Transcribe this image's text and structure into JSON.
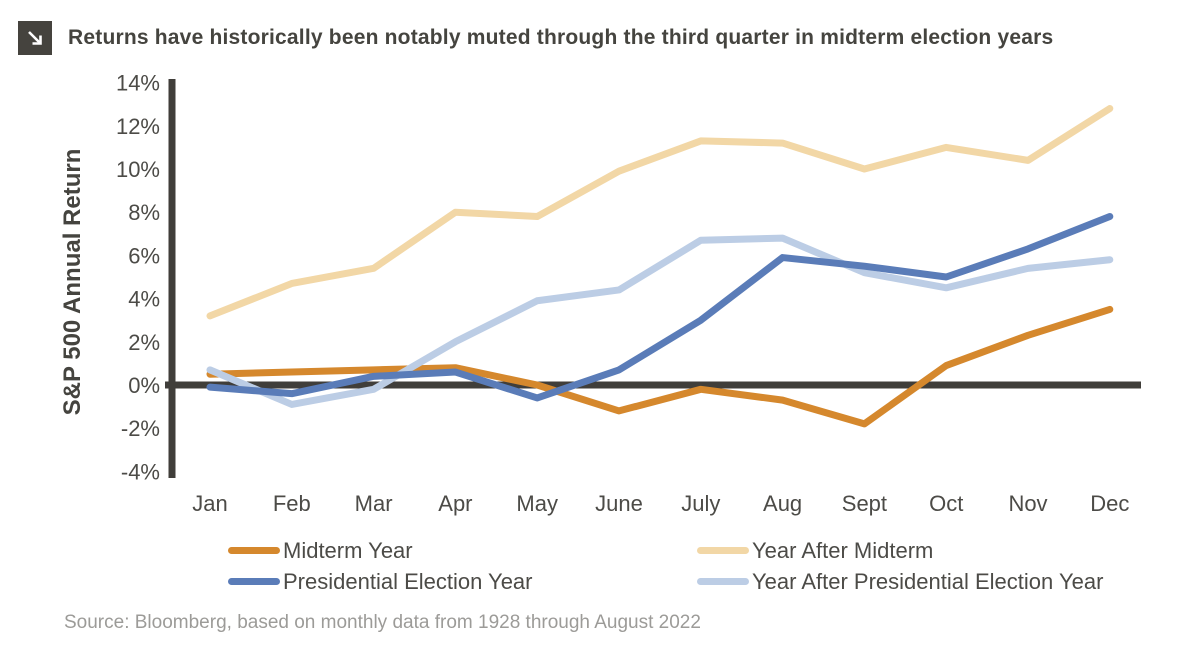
{
  "header": {
    "icon": "arrow-down-right",
    "title": "Returns have historically been notably muted through the third quarter in midterm election years"
  },
  "chart_data": {
    "type": "line",
    "title": "Returns have historically been notably muted through the third quarter in midterm election years",
    "xlabel": "",
    "ylabel": "S&P 500 Annual Return",
    "categories": [
      "Jan",
      "Feb",
      "Mar",
      "Apr",
      "May",
      "June",
      "July",
      "Aug",
      "Sept",
      "Oct",
      "Nov",
      "Dec"
    ],
    "y_ticks": [
      14,
      12,
      10,
      8,
      6,
      4,
      2,
      0,
      -2,
      -4
    ],
    "y_tick_suffix": "%",
    "ylim": [
      -4,
      14
    ],
    "grid": false,
    "legend_position": "bottom",
    "axis_color": "#403e3a",
    "tick_label_color": "#4c4b47",
    "series": [
      {
        "name": "Midterm Year",
        "color": "#d5882d",
        "values": [
          0.5,
          0.6,
          0.7,
          0.8,
          0.0,
          -1.2,
          -0.2,
          -0.7,
          -1.8,
          0.9,
          2.3,
          3.5
        ]
      },
      {
        "name": "Year After Midterm",
        "color": "#f2d7a6",
        "values": [
          3.2,
          4.7,
          5.4,
          8.0,
          7.8,
          9.9,
          11.3,
          11.2,
          10.0,
          11.0,
          10.4,
          12.8
        ]
      },
      {
        "name": "Presidential Election Year",
        "color": "#5a7cb8",
        "values": [
          -0.1,
          -0.4,
          0.4,
          0.6,
          -0.6,
          0.7,
          3.0,
          5.9,
          5.5,
          5.0,
          6.3,
          7.8
        ]
      },
      {
        "name": "Year After Presidential Election Year",
        "color": "#bccde5",
        "values": [
          0.7,
          -0.9,
          -0.2,
          2.0,
          3.9,
          4.4,
          6.7,
          6.8,
          5.2,
          4.5,
          5.4,
          5.8
        ]
      }
    ]
  },
  "source": {
    "text": "Source: Bloomberg, based on monthly data from 1928 through August 2022"
  }
}
